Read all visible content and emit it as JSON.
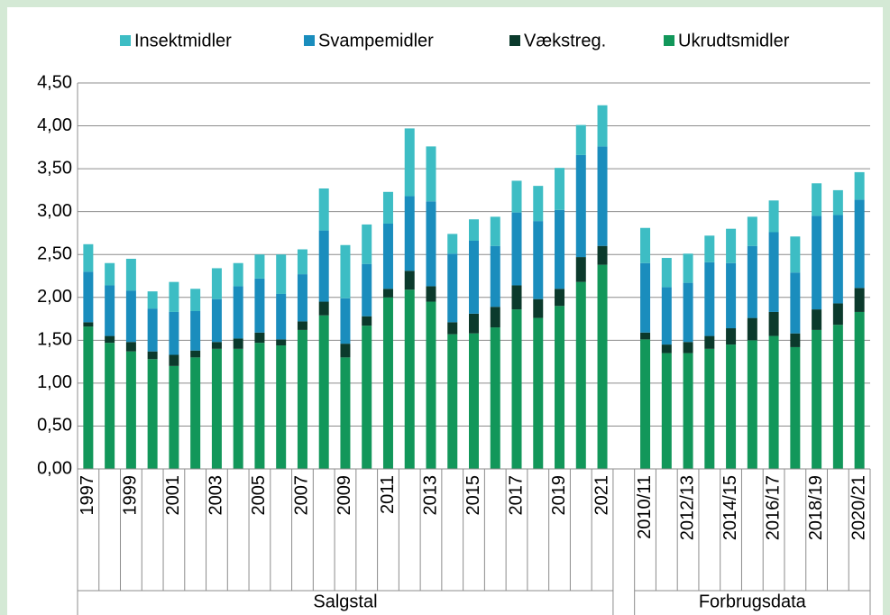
{
  "chart_data": {
    "type": "stacked_bar",
    "categories": [
      "1997",
      null,
      "1999",
      null,
      "2001",
      null,
      "2003",
      null,
      "2005",
      null,
      "2007",
      null,
      "2009",
      null,
      "2011",
      null,
      "2013",
      null,
      "2015",
      null,
      "2017",
      null,
      "2019",
      null,
      "2021",
      null,
      "2010/11",
      null,
      "2012/13",
      null,
      "2014/15",
      null,
      "2016/17",
      null,
      "2018/19",
      null,
      "2020/21"
    ],
    "groups": [
      "Salgstal",
      "Forbrugsdata"
    ],
    "series": [
      {
        "name": "Ukrudtsmidler",
        "color": "#12975a",
        "values": [
          1.66,
          1.47,
          1.37,
          1.28,
          1.2,
          1.3,
          1.4,
          1.4,
          1.47,
          1.44,
          1.62,
          1.79,
          1.3,
          1.67,
          2.0,
          2.09,
          1.95,
          1.57,
          1.58,
          1.65,
          1.86,
          1.76,
          1.9,
          2.18,
          2.38,
          null,
          1.51,
          1.35,
          1.35,
          1.4,
          1.45,
          1.5,
          1.55,
          1.42,
          1.62,
          1.68,
          1.83
        ]
      },
      {
        "name": "Vækstreg.",
        "color": "#0b3a2c",
        "values": [
          0.05,
          0.08,
          0.11,
          0.09,
          0.13,
          0.08,
          0.08,
          0.12,
          0.12,
          0.07,
          0.1,
          0.16,
          0.16,
          0.11,
          0.1,
          0.22,
          0.18,
          0.14,
          0.23,
          0.24,
          0.28,
          0.22,
          0.2,
          0.29,
          0.22,
          null,
          0.08,
          0.1,
          0.13,
          0.15,
          0.19,
          0.26,
          0.28,
          0.16,
          0.24,
          0.25,
          0.28
        ]
      },
      {
        "name": "Svampemidler",
        "color": "#1a8dbd",
        "values": [
          0.59,
          0.59,
          0.6,
          0.5,
          0.5,
          0.46,
          0.5,
          0.61,
          0.63,
          0.53,
          0.55,
          0.83,
          0.53,
          0.61,
          0.76,
          0.87,
          0.99,
          0.8,
          0.85,
          0.71,
          0.85,
          0.91,
          0.92,
          1.19,
          1.16,
          null,
          0.81,
          0.67,
          0.69,
          0.86,
          0.76,
          0.84,
          0.93,
          0.71,
          1.09,
          1.03,
          1.03
        ]
      },
      {
        "name": "Insektmidler",
        "color": "#3dbdc4",
        "values": [
          0.32,
          0.26,
          0.37,
          0.2,
          0.35,
          0.26,
          0.36,
          0.27,
          0.28,
          0.46,
          0.29,
          0.49,
          0.62,
          0.46,
          0.37,
          0.79,
          0.64,
          0.23,
          0.25,
          0.34,
          0.37,
          0.41,
          0.49,
          0.35,
          0.48,
          null,
          0.41,
          0.34,
          0.34,
          0.31,
          0.4,
          0.34,
          0.37,
          0.42,
          0.38,
          0.29,
          0.32
        ]
      }
    ],
    "legend_order": [
      3,
      2,
      1,
      0
    ],
    "ylim": [
      0,
      4.5
    ],
    "yticks": [
      {
        "value": 0,
        "label": "0,00"
      },
      {
        "value": 0.5,
        "label": "0,50"
      },
      {
        "value": 1,
        "label": "1,00"
      },
      {
        "value": 1.5,
        "label": "1,50"
      },
      {
        "value": 2,
        "label": "2,00"
      },
      {
        "value": 2.5,
        "label": "2,50"
      },
      {
        "value": 3,
        "label": "3,00"
      },
      {
        "value": 3.5,
        "label": "3,50"
      },
      {
        "value": 4,
        "label": "4,00"
      },
      {
        "value": 4.5,
        "label": "4,50"
      }
    ],
    "grid": true
  }
}
